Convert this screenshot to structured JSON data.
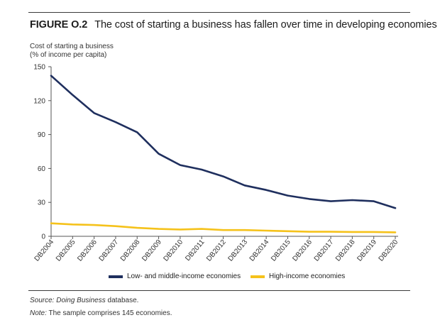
{
  "figure": {
    "label": "FIGURE O.2",
    "title": "The cost of starting a business has fallen over time in developing economies"
  },
  "colors": {
    "low_middle": "#1f2f5e",
    "high": "#f5c21b",
    "axis": "#555555"
  },
  "chart_data": {
    "type": "line",
    "ylabel": [
      "Cost of starting a business",
      "(% of income per capita)"
    ],
    "xlabel": "",
    "ylim": [
      0,
      150
    ],
    "yticks": [
      0,
      30,
      60,
      90,
      120,
      150
    ],
    "grid": false,
    "categories": [
      "DB2004",
      "DB2005",
      "DB2006",
      "DB2007",
      "DB2008",
      "DB2009",
      "DB2010",
      "DB2011",
      "DB2012",
      "DB2013",
      "DB2014",
      "DB2015",
      "DB2016",
      "DB2017",
      "DB2018",
      "DB2019",
      "DB2020"
    ],
    "series": [
      {
        "name": "Low- and middle-income economies",
        "color": "#1f2f5e",
        "values": [
          142,
          125,
          109,
          101,
          92,
          73,
          63,
          59,
          53,
          45,
          41,
          36,
          33,
          31,
          32,
          31,
          25
        ]
      },
      {
        "name": "High-income economies",
        "color": "#f5c21b",
        "values": [
          11.5,
          10.5,
          10,
          9,
          7.5,
          6.5,
          6,
          6.5,
          5.5,
          5.5,
          5,
          4.5,
          4,
          4,
          3.8,
          3.8,
          3.5
        ]
      }
    ],
    "legend_position": "bottom"
  },
  "legend": {
    "low": "Low- and middle-income economies",
    "high": "High-income economies"
  },
  "source": {
    "label": "Source:",
    "name": "Doing Business",
    "rest": " database."
  },
  "note": {
    "label": "Note:",
    "text": " The sample comprises 145 economies."
  }
}
